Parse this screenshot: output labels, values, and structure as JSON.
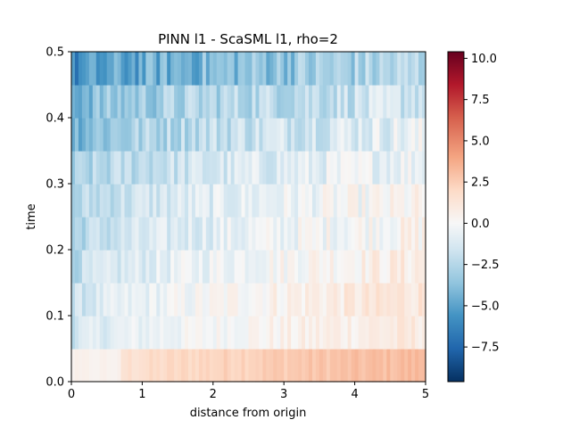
{
  "chart_data": {
    "type": "heatmap",
    "title": "PINN l1 - ScaSML l1, rho=2",
    "xlabel": "distance from origin",
    "ylabel": "time",
    "xlim": [
      0,
      5
    ],
    "ylim": [
      0,
      0.5
    ],
    "x_ticks": [
      "0",
      "1",
      "2",
      "3",
      "4",
      "5"
    ],
    "y_ticks": [
      "0.0",
      "0.1",
      "0.2",
      "0.3",
      "0.4",
      "0.5"
    ],
    "x_tick_values": [
      0,
      1,
      2,
      3,
      4,
      5
    ],
    "y_tick_values": [
      0,
      0.1,
      0.2,
      0.3,
      0.4,
      0.5
    ],
    "colorbar": {
      "colormap": "RdBu_r",
      "vmin": -9.6,
      "vmax": 10.4,
      "ticks": [
        -7.5,
        -5.0,
        -2.5,
        0.0,
        2.5,
        5.0,
        7.5,
        10.0
      ],
      "tick_labels": [
        "−7.5",
        "−5.0",
        "−2.5",
        "0.0",
        "2.5",
        "5.0",
        "7.5",
        "10.0"
      ]
    },
    "n_x_bins": 100,
    "time_bands": [
      {
        "t_range": [
          0.0,
          0.05
        ],
        "left_value": 0.5,
        "right_value": 3.2,
        "noise": 0.4
      },
      {
        "t_range": [
          0.05,
          0.1
        ],
        "left_value": -1.8,
        "right_value": 1.0,
        "noise": 0.7
      },
      {
        "t_range": [
          0.1,
          0.15
        ],
        "left_value": -2.2,
        "right_value": 1.3,
        "noise": 0.8
      },
      {
        "t_range": [
          0.15,
          0.2
        ],
        "left_value": -2.6,
        "right_value": 0.9,
        "noise": 0.9
      },
      {
        "t_range": [
          0.2,
          0.25
        ],
        "left_value": -3.0,
        "right_value": 0.4,
        "noise": 1.0
      },
      {
        "t_range": [
          0.25,
          0.3
        ],
        "left_value": -3.0,
        "right_value": 0.2,
        "noise": 1.0
      },
      {
        "t_range": [
          0.3,
          0.35
        ],
        "left_value": -3.5,
        "right_value": -0.3,
        "noise": 1.1
      },
      {
        "t_range": [
          0.35,
          0.4
        ],
        "left_value": -4.5,
        "right_value": -0.6,
        "noise": 1.3
      },
      {
        "t_range": [
          0.4,
          0.45
        ],
        "left_value": -4.5,
        "right_value": -1.5,
        "noise": 1.3
      },
      {
        "t_range": [
          0.45,
          0.5
        ],
        "left_value": -6.5,
        "right_value": -2.5,
        "noise": 1.5
      }
    ]
  }
}
